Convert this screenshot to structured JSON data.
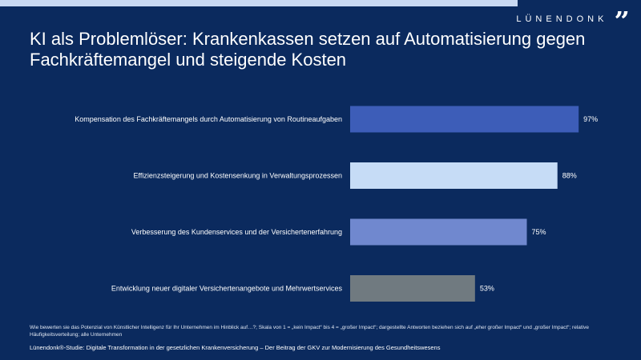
{
  "header": {
    "title": "KI als Problemlöser: Krankenkassen setzen auf Automatisierung gegen Fachkräftemangel und steigende Kosten",
    "brand": "LÜNENDONK",
    "brand_quote": "”"
  },
  "chart_data": {
    "type": "bar",
    "orientation": "horizontal",
    "title": "",
    "xlabel": "",
    "ylabel": "",
    "xlim": [
      0,
      100
    ],
    "grid": false,
    "categories": [
      "Kompensation des Fachkräftemangels durch Automatisierung von Routineaufgaben",
      "Effizienzsteigerung und Kostensenkung in Verwaltungsprozessen",
      "Verbesserung des Kundenservices und der Versichertenerfahrung",
      "Entwicklung neuer digitaler Versichertenangebote und Mehrwertservices"
    ],
    "values": [
      97,
      88,
      75,
      53
    ],
    "value_labels": [
      "97%",
      "88%",
      "75%",
      "53%"
    ],
    "colors": [
      "#3d5db8",
      "#c6dcf6",
      "#7088cf",
      "#707a80"
    ]
  },
  "footer": {
    "footnote": "Wie bewerten sie das Potenzial von Künstlicher Intelligenz für Ihr Unternehmen im Hinblick auf…?; Skala von 1 = „kein Impact“ bis 4 = „großer Impact“; dargestellte Antworten beziehen sich auf „eher großer Impact“ und „großer Impact“; relative Häufigkeitsverteilung; alle Unternehmen",
    "source": "Lünendonk®-Studie: Digitale Transformation in der gesetzlichen Krankenversicherung – Der Beitrag der GKV zur Modernisierung des Gesundheitswesens"
  }
}
